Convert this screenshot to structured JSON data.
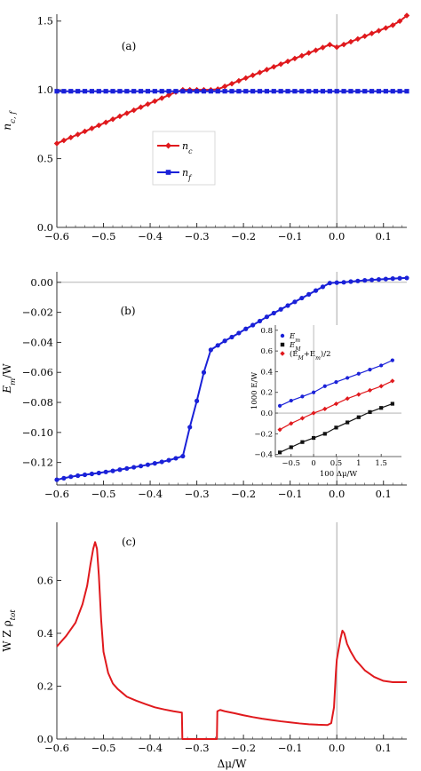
{
  "colors": {
    "red": "#e0191d",
    "blue": "#1a21d8",
    "black": "#111111",
    "axis": "#333333",
    "refline": "#a8a8a8"
  },
  "chart_data": [
    {
      "id": "a",
      "type": "line",
      "panel_label": "(a)",
      "xlabel": "",
      "ylabel": "n",
      "ylabel_sub": "c, f",
      "xlim": [
        -0.6,
        0.15
      ],
      "ylim": [
        0.0,
        1.55
      ],
      "x_ticks": [
        -0.6,
        -0.5,
        -0.4,
        -0.3,
        -0.2,
        -0.1,
        0.0,
        0.1
      ],
      "x_tick_labels": [
        "−0.6",
        "−0.5",
        "−0.4",
        "−0.3",
        "−0.2",
        "−0.1",
        "0.0",
        "0.1"
      ],
      "y_ticks": [
        0.0,
        0.5,
        1.0,
        1.5
      ],
      "y_tick_labels": [
        "0.0",
        "0.5",
        "1.0",
        "1.5"
      ],
      "grid": false,
      "vline_x": 0.0,
      "legend": {
        "placement": "center-left, boxed",
        "entries": [
          {
            "label": "n",
            "sub": "c"
          },
          {
            "label": "n",
            "sub": "f"
          }
        ]
      },
      "series": [
        {
          "name": "n_c",
          "label_main": "n",
          "label_sub": "c",
          "color": "#e0191d",
          "marker": "diamond",
          "x": [
            -0.6,
            -0.585,
            -0.57,
            -0.555,
            -0.54,
            -0.525,
            -0.51,
            -0.495,
            -0.48,
            -0.465,
            -0.45,
            -0.435,
            -0.42,
            -0.405,
            -0.39,
            -0.375,
            -0.36,
            -0.345,
            -0.33,
            -0.315,
            -0.3,
            -0.285,
            -0.27,
            -0.255,
            -0.24,
            -0.225,
            -0.21,
            -0.195,
            -0.18,
            -0.165,
            -0.15,
            -0.135,
            -0.12,
            -0.105,
            -0.09,
            -0.075,
            -0.06,
            -0.045,
            -0.03,
            -0.015,
            0.0,
            0.015,
            0.03,
            0.045,
            0.06,
            0.075,
            0.09,
            0.105,
            0.12,
            0.135,
            0.15
          ],
          "y": [
            0.61,
            0.632,
            0.654,
            0.676,
            0.698,
            0.72,
            0.742,
            0.764,
            0.786,
            0.808,
            0.83,
            0.852,
            0.874,
            0.896,
            0.918,
            0.94,
            0.962,
            0.984,
            1.0,
            1.0,
            1.0,
            1.0,
            1.0,
            1.005,
            1.025,
            1.045,
            1.066,
            1.086,
            1.106,
            1.126,
            1.147,
            1.167,
            1.187,
            1.207,
            1.228,
            1.248,
            1.268,
            1.288,
            1.308,
            1.329,
            1.31,
            1.33,
            1.35,
            1.37,
            1.39,
            1.41,
            1.43,
            1.45,
            1.47,
            1.5,
            1.54
          ]
        },
        {
          "name": "n_f",
          "label_main": "n",
          "label_sub": "f",
          "color": "#1a21d8",
          "marker": "square",
          "x": [
            -0.6,
            -0.585,
            -0.57,
            -0.555,
            -0.54,
            -0.525,
            -0.51,
            -0.495,
            -0.48,
            -0.465,
            -0.45,
            -0.435,
            -0.42,
            -0.405,
            -0.39,
            -0.375,
            -0.36,
            -0.345,
            -0.33,
            -0.315,
            -0.3,
            -0.285,
            -0.27,
            -0.255,
            -0.24,
            -0.225,
            -0.21,
            -0.195,
            -0.18,
            -0.165,
            -0.15,
            -0.135,
            -0.12,
            -0.105,
            -0.09,
            -0.075,
            -0.06,
            -0.045,
            -0.03,
            -0.015,
            0.0,
            0.015,
            0.03,
            0.045,
            0.06,
            0.075,
            0.09,
            0.105,
            0.12,
            0.135,
            0.15
          ],
          "y": [
            0.99,
            0.99,
            0.99,
            0.99,
            0.99,
            0.99,
            0.99,
            0.99,
            0.99,
            0.99,
            0.99,
            0.99,
            0.99,
            0.99,
            0.99,
            0.99,
            0.99,
            0.99,
            0.99,
            0.99,
            0.99,
            0.99,
            0.99,
            0.99,
            0.99,
            0.99,
            0.99,
            0.99,
            0.99,
            0.99,
            0.99,
            0.99,
            0.99,
            0.99,
            0.99,
            0.99,
            0.99,
            0.99,
            0.99,
            0.99,
            0.99,
            0.99,
            0.99,
            0.99,
            0.99,
            0.99,
            0.99,
            0.99,
            0.99,
            0.99,
            0.99
          ]
        }
      ]
    },
    {
      "id": "b",
      "type": "line",
      "panel_label": "(b)",
      "xlabel": "",
      "ylabel": "E",
      "ylabel_sub": "m",
      "ylabel_suffix": "/W",
      "xlim": [
        -0.6,
        0.15
      ],
      "ylim": [
        -0.135,
        0.007
      ],
      "x_ticks": [
        -0.6,
        -0.5,
        -0.4,
        -0.3,
        -0.2,
        -0.1,
        0.0,
        0.1
      ],
      "x_tick_labels": [
        "−0.6",
        "−0.5",
        "−0.4",
        "−0.3",
        "−0.2",
        "−0.1",
        "0.0",
        "0.1"
      ],
      "y_ticks": [
        0.0,
        -0.02,
        -0.04,
        -0.06,
        -0.08,
        -0.1,
        -0.12
      ],
      "y_tick_labels": [
        "0.00",
        "−0.02",
        "−0.04",
        "−0.06",
        "−0.08",
        "−0.10",
        "−0.12"
      ],
      "grid": false,
      "vline_x": 0.0,
      "hline_y": 0.0,
      "series": [
        {
          "name": "E_m",
          "color": "#1a21d8",
          "marker": "circle",
          "x": [
            -0.6,
            -0.585,
            -0.57,
            -0.555,
            -0.54,
            -0.525,
            -0.51,
            -0.495,
            -0.48,
            -0.465,
            -0.45,
            -0.435,
            -0.42,
            -0.405,
            -0.39,
            -0.375,
            -0.36,
            -0.345,
            -0.33,
            -0.315,
            -0.3,
            -0.285,
            -0.27,
            -0.255,
            -0.24,
            -0.225,
            -0.21,
            -0.195,
            -0.18,
            -0.165,
            -0.15,
            -0.135,
            -0.12,
            -0.105,
            -0.09,
            -0.075,
            -0.06,
            -0.045,
            -0.03,
            -0.015,
            0.0,
            0.015,
            0.03,
            0.045,
            0.06,
            0.075,
            0.09,
            0.105,
            0.12,
            0.135,
            0.15
          ],
          "y": [
            -0.1315,
            -0.1305,
            -0.1295,
            -0.1288,
            -0.1282,
            -0.1276,
            -0.127,
            -0.1263,
            -0.1256,
            -0.1248,
            -0.124,
            -0.1232,
            -0.1224,
            -0.1215,
            -0.1206,
            -0.1196,
            -0.1185,
            -0.1172,
            -0.1158,
            -0.0965,
            -0.079,
            -0.06,
            -0.045,
            -0.042,
            -0.039,
            -0.0365,
            -0.0338,
            -0.031,
            -0.0285,
            -0.0258,
            -0.023,
            -0.0205,
            -0.018,
            -0.0155,
            -0.013,
            -0.0105,
            -0.008,
            -0.0055,
            -0.003,
            -0.0005,
            -0.0002,
            0.0,
            0.0005,
            0.0009,
            0.0013,
            0.0016,
            0.0019,
            0.0022,
            0.0025,
            0.0027,
            0.0029
          ]
        }
      ],
      "inset": {
        "type": "line",
        "xlabel": "100 Δμ/W",
        "ylabel": "1000 E/W",
        "xlim": [
          -0.85,
          1.95
        ],
        "ylim": [
          -0.42,
          0.85
        ],
        "x_ticks": [
          -0.5,
          0,
          0.5,
          1,
          1.5
        ],
        "x_tick_labels": [
          "−0.5",
          "0",
          "0.5",
          "1",
          "1.5"
        ],
        "y_ticks": [
          -0.4,
          -0.2,
          0.0,
          0.2,
          0.4,
          0.6,
          0.8
        ],
        "y_tick_labels": [
          "−0.4",
          "−0.2",
          "0.0",
          "0.2",
          "0.4",
          "0.6",
          "0.8"
        ],
        "grid": false,
        "vline_x": 0.0,
        "hline_y": 0.0,
        "legend": {
          "placement": "top-left"
        },
        "series": [
          {
            "name": "E_m",
            "label_main": "E",
            "label_sub": "m",
            "color": "#1a21d8",
            "marker": "circle",
            "x": [
              -0.75,
              -0.5,
              -0.25,
              0.0,
              0.25,
              0.5,
              0.75,
              1.0,
              1.25,
              1.5,
              1.75
            ],
            "y": [
              0.07,
              0.12,
              0.16,
              0.2,
              0.26,
              0.3,
              0.34,
              0.38,
              0.42,
              0.46,
              0.51
            ]
          },
          {
            "name": "E_M",
            "label_main": "E",
            "label_sub": "M",
            "color": "#111111",
            "marker": "square",
            "x": [
              -0.75,
              -0.5,
              -0.25,
              0.0,
              0.25,
              0.5,
              0.75,
              1.0,
              1.25,
              1.5,
              1.75
            ],
            "y": [
              -0.38,
              -0.33,
              -0.28,
              -0.24,
              -0.2,
              -0.14,
              -0.09,
              -0.04,
              0.01,
              0.05,
              0.09
            ]
          },
          {
            "name": "(E_M+E_m)/2",
            "label_text": "(E",
            "label_sub1": "M",
            "label_mid": "+E",
            "label_sub2": "m",
            "label_end": ")/2",
            "color": "#e0191d",
            "marker": "diamond",
            "x": [
              -0.75,
              -0.5,
              -0.25,
              0.0,
              0.25,
              0.5,
              0.75,
              1.0,
              1.25,
              1.5,
              1.75
            ],
            "y": [
              -0.16,
              -0.1,
              -0.05,
              0.0,
              0.04,
              0.09,
              0.14,
              0.18,
              0.22,
              0.26,
              0.31
            ]
          }
        ]
      }
    },
    {
      "id": "c",
      "type": "line",
      "panel_label": "(c)",
      "xlabel": "Δμ/W",
      "ylabel": "W Z ρ",
      "ylabel_sub": "tot",
      "xlim": [
        -0.6,
        0.15
      ],
      "ylim": [
        0.0,
        0.82
      ],
      "x_ticks": [
        -0.6,
        -0.5,
        -0.4,
        -0.3,
        -0.2,
        -0.1,
        0.0,
        0.1
      ],
      "x_tick_labels": [
        "−0.6",
        "−0.5",
        "−0.4",
        "−0.3",
        "−0.2",
        "−0.1",
        "0.0",
        "0.1"
      ],
      "y_ticks": [
        0.0,
        0.2,
        0.4,
        0.6
      ],
      "y_tick_labels": [
        "0.0",
        "0.2",
        "0.4",
        "0.6"
      ],
      "grid": false,
      "vline_x": 0.0,
      "series": [
        {
          "name": "W Z ρ_tot",
          "color": "#e0191d",
          "marker": "none",
          "x": [
            -0.6,
            -0.58,
            -0.56,
            -0.545,
            -0.535,
            -0.528,
            -0.522,
            -0.518,
            -0.514,
            -0.51,
            -0.505,
            -0.5,
            -0.49,
            -0.48,
            -0.47,
            -0.46,
            -0.45,
            -0.43,
            -0.41,
            -0.39,
            -0.37,
            -0.35,
            -0.332,
            -0.331,
            -0.33,
            -0.3,
            -0.27,
            -0.257,
            -0.256,
            -0.25,
            -0.24,
            -0.22,
            -0.2,
            -0.18,
            -0.16,
            -0.14,
            -0.12,
            -0.1,
            -0.08,
            -0.06,
            -0.04,
            -0.02,
            -0.012,
            -0.006,
            -0.002,
            0.0,
            0.004,
            0.008,
            0.012,
            0.016,
            0.022,
            0.03,
            0.04,
            0.06,
            0.08,
            0.1,
            0.12,
            0.15
          ],
          "y": [
            0.35,
            0.39,
            0.44,
            0.51,
            0.58,
            0.66,
            0.72,
            0.745,
            0.72,
            0.62,
            0.45,
            0.33,
            0.25,
            0.21,
            0.19,
            0.175,
            0.16,
            0.145,
            0.132,
            0.12,
            0.112,
            0.105,
            0.1,
            0.0,
            0.0,
            0.0,
            0.0,
            0.0,
            0.105,
            0.11,
            0.105,
            0.098,
            0.09,
            0.083,
            0.077,
            0.072,
            0.067,
            0.063,
            0.059,
            0.056,
            0.054,
            0.053,
            0.06,
            0.12,
            0.25,
            0.3,
            0.34,
            0.38,
            0.41,
            0.4,
            0.36,
            0.33,
            0.3,
            0.26,
            0.235,
            0.22,
            0.215,
            0.215
          ]
        }
      ]
    }
  ]
}
